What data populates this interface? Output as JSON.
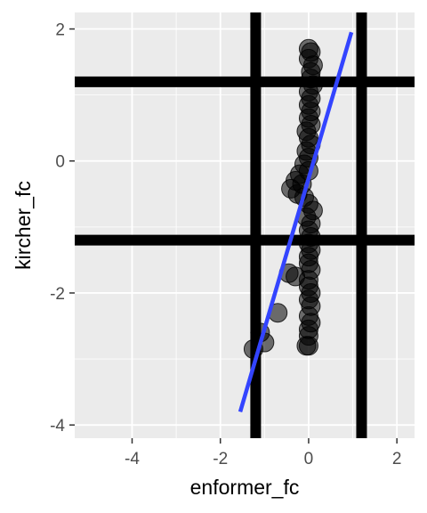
{
  "chart_data": {
    "type": "scatter",
    "title": "",
    "xlabel": "enformer_fc",
    "ylabel": "kircher_fc",
    "xlim": [
      -5.3,
      2.4
    ],
    "ylim": [
      -4.2,
      2.25
    ],
    "x_ticks": [
      -4,
      -2,
      0,
      2
    ],
    "y_ticks": [
      -4,
      -2,
      0,
      2
    ],
    "x_tick_labels": [
      "-4",
      "-2",
      "0",
      "2"
    ],
    "y_tick_labels": [
      "-4",
      "-2",
      "0",
      "2"
    ],
    "grid": true,
    "panel_background": "#ebebeb",
    "grid_color": "#ffffff",
    "point_color": "#000000",
    "point_alpha": 0.55,
    "fit_line_color": "#3344ff",
    "reference_line_color": "#000000",
    "vertical_reference_lines": [
      -1.2,
      1.2
    ],
    "horizontal_reference_lines": [
      1.2,
      -1.2
    ],
    "fit_line": {
      "x": [
        -1.55,
        0.97
      ],
      "y": [
        -3.8,
        1.95
      ]
    },
    "points": [
      {
        "x": 0.0,
        "y": 1.7
      },
      {
        "x": 0.05,
        "y": 1.65
      },
      {
        "x": 0.0,
        "y": 1.55
      },
      {
        "x": 0.1,
        "y": 1.45
      },
      {
        "x": 0.05,
        "y": 1.35
      },
      {
        "x": 0.05,
        "y": 1.25
      },
      {
        "x": 0.1,
        "y": 1.15
      },
      {
        "x": 0.0,
        "y": 1.05
      },
      {
        "x": 0.05,
        "y": 0.95
      },
      {
        "x": 0.0,
        "y": 0.85
      },
      {
        "x": 0.05,
        "y": 0.75
      },
      {
        "x": 0.0,
        "y": 0.65
      },
      {
        "x": 0.05,
        "y": 0.55
      },
      {
        "x": -0.05,
        "y": 0.45
      },
      {
        "x": 0.0,
        "y": 0.35
      },
      {
        "x": 0.05,
        "y": 0.25
      },
      {
        "x": -0.05,
        "y": 0.15
      },
      {
        "x": 0.0,
        "y": 0.05
      },
      {
        "x": -0.1,
        "y": -0.05
      },
      {
        "x": 0.0,
        "y": -0.15
      },
      {
        "x": -0.2,
        "y": -0.2
      },
      {
        "x": -0.3,
        "y": -0.3
      },
      {
        "x": -0.15,
        "y": -0.35
      },
      {
        "x": -0.4,
        "y": -0.42
      },
      {
        "x": -0.25,
        "y": -0.5
      },
      {
        "x": -0.1,
        "y": -0.55
      },
      {
        "x": 0.0,
        "y": -0.65
      },
      {
        "x": 0.1,
        "y": -0.75
      },
      {
        "x": -0.05,
        "y": -0.85
      },
      {
        "x": 0.05,
        "y": -0.95
      },
      {
        "x": 0.0,
        "y": -1.05
      },
      {
        "x": 0.05,
        "y": -1.15
      },
      {
        "x": 0.0,
        "y": -1.25
      },
      {
        "x": 0.05,
        "y": -1.35
      },
      {
        "x": 0.0,
        "y": -1.45
      },
      {
        "x": 0.0,
        "y": -1.55
      },
      {
        "x": 0.05,
        "y": -1.65
      },
      {
        "x": -0.45,
        "y": -1.7
      },
      {
        "x": -0.3,
        "y": -1.75
      },
      {
        "x": 0.0,
        "y": -1.8
      },
      {
        "x": 0.0,
        "y": -1.9
      },
      {
        "x": 0.05,
        "y": -2.0
      },
      {
        "x": 0.0,
        "y": -2.1
      },
      {
        "x": 0.05,
        "y": -2.2
      },
      {
        "x": -0.7,
        "y": -2.3
      },
      {
        "x": 0.0,
        "y": -2.35
      },
      {
        "x": 0.05,
        "y": -2.45
      },
      {
        "x": 0.0,
        "y": -2.55
      },
      {
        "x": -1.1,
        "y": -2.6
      },
      {
        "x": 0.0,
        "y": -2.65
      },
      {
        "x": -1.0,
        "y": -2.75
      },
      {
        "x": 0.0,
        "y": -2.8
      },
      {
        "x": -1.25,
        "y": -2.85
      },
      {
        "x": -0.05,
        "y": -2.8
      }
    ]
  }
}
